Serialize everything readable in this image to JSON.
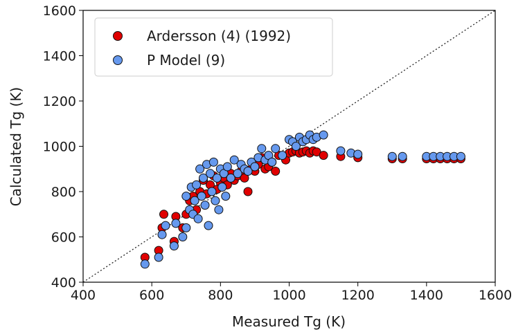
{
  "chart_data": {
    "type": "scatter",
    "xlabel": "Measured Tg (K)",
    "ylabel": "Calculated Tg (K)",
    "xlim": [
      400,
      1600
    ],
    "ylim": [
      400,
      1600
    ],
    "xticks": [
      "400",
      "600",
      "800",
      "1000",
      "1200",
      "1400",
      "1600"
    ],
    "yticks": [
      "400",
      "600",
      "800",
      "1000",
      "1200",
      "1400",
      "1600"
    ],
    "reference_line": "y = x (dotted)",
    "grid": false,
    "legend_position": "top-left",
    "series": [
      {
        "name": "Ardersson (4) (1992)",
        "color": "#e00000",
        "points": [
          [
            580,
            510
          ],
          [
            620,
            540
          ],
          [
            630,
            640
          ],
          [
            635,
            700
          ],
          [
            665,
            580
          ],
          [
            670,
            690
          ],
          [
            690,
            640
          ],
          [
            700,
            700
          ],
          [
            710,
            760
          ],
          [
            720,
            780
          ],
          [
            730,
            720
          ],
          [
            740,
            800
          ],
          [
            750,
            850
          ],
          [
            760,
            790
          ],
          [
            770,
            830
          ],
          [
            780,
            870
          ],
          [
            790,
            810
          ],
          [
            800,
            840
          ],
          [
            810,
            860
          ],
          [
            820,
            830
          ],
          [
            830,
            880
          ],
          [
            840,
            850
          ],
          [
            850,
            870
          ],
          [
            860,
            890
          ],
          [
            870,
            860
          ],
          [
            880,
            800
          ],
          [
            890,
            900
          ],
          [
            900,
            890
          ],
          [
            910,
            920
          ],
          [
            920,
            950
          ],
          [
            930,
            900
          ],
          [
            940,
            910
          ],
          [
            950,
            930
          ],
          [
            960,
            890
          ],
          [
            970,
            960
          ],
          [
            990,
            940
          ],
          [
            1000,
            970
          ],
          [
            1010,
            975
          ],
          [
            1020,
            980
          ],
          [
            1030,
            970
          ],
          [
            1040,
            975
          ],
          [
            1050,
            980
          ],
          [
            1060,
            970
          ],
          [
            1070,
            980
          ],
          [
            1080,
            975
          ],
          [
            1100,
            960
          ],
          [
            1150,
            955
          ],
          [
            1200,
            950
          ],
          [
            1300,
            945
          ],
          [
            1330,
            945
          ],
          [
            1400,
            945
          ],
          [
            1420,
            945
          ],
          [
            1440,
            945
          ],
          [
            1460,
            945
          ],
          [
            1480,
            945
          ],
          [
            1500,
            945
          ]
        ]
      },
      {
        "name": "P Model (9)",
        "color": "#6699ee",
        "points": [
          [
            580,
            480
          ],
          [
            620,
            510
          ],
          [
            630,
            610
          ],
          [
            640,
            650
          ],
          [
            665,
            560
          ],
          [
            670,
            660
          ],
          [
            690,
            600
          ],
          [
            700,
            640
          ],
          [
            700,
            780
          ],
          [
            710,
            720
          ],
          [
            715,
            820
          ],
          [
            720,
            700
          ],
          [
            725,
            760
          ],
          [
            730,
            830
          ],
          [
            735,
            680
          ],
          [
            740,
            900
          ],
          [
            745,
            780
          ],
          [
            750,
            860
          ],
          [
            755,
            740
          ],
          [
            760,
            920
          ],
          [
            765,
            650
          ],
          [
            770,
            880
          ],
          [
            775,
            800
          ],
          [
            780,
            930
          ],
          [
            785,
            760
          ],
          [
            790,
            860
          ],
          [
            795,
            720
          ],
          [
            800,
            900
          ],
          [
            805,
            820
          ],
          [
            810,
            880
          ],
          [
            815,
            780
          ],
          [
            820,
            910
          ],
          [
            830,
            860
          ],
          [
            840,
            940
          ],
          [
            850,
            880
          ],
          [
            860,
            920
          ],
          [
            870,
            900
          ],
          [
            880,
            890
          ],
          [
            890,
            930
          ],
          [
            900,
            910
          ],
          [
            910,
            950
          ],
          [
            920,
            990
          ],
          [
            930,
            940
          ],
          [
            940,
            960
          ],
          [
            950,
            930
          ],
          [
            960,
            990
          ],
          [
            980,
            960
          ],
          [
            1000,
            1030
          ],
          [
            1010,
            1020
          ],
          [
            1020,
            1000
          ],
          [
            1030,
            1040
          ],
          [
            1040,
            1020
          ],
          [
            1050,
            1030
          ],
          [
            1060,
            1050
          ],
          [
            1070,
            1030
          ],
          [
            1080,
            1040
          ],
          [
            1100,
            1050
          ],
          [
            1150,
            980
          ],
          [
            1180,
            970
          ],
          [
            1200,
            965
          ],
          [
            1300,
            955
          ],
          [
            1330,
            955
          ],
          [
            1400,
            955
          ],
          [
            1420,
            955
          ],
          [
            1440,
            955
          ],
          [
            1460,
            955
          ],
          [
            1480,
            955
          ],
          [
            1500,
            955
          ]
        ]
      }
    ]
  }
}
